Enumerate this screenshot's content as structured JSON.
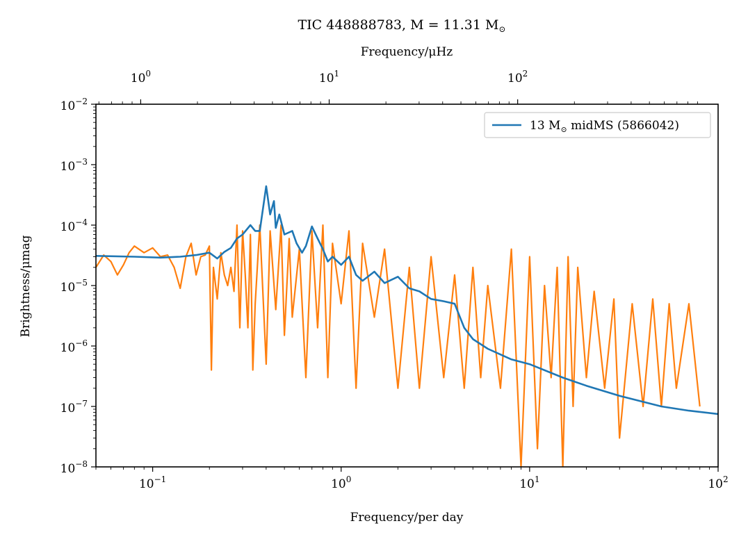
{
  "chart_data": {
    "type": "line",
    "title": "TIC 448888783, M = 11.31 M",
    "title_symbol": "⊙",
    "xlabel": "Frequency/per day",
    "ylabel": "Brightness/μmag",
    "top_xlabel": "Frequency/μHz",
    "x_scale": "log",
    "y_scale": "log",
    "xlim": [
      0.05,
      100
    ],
    "ylim": [
      1e-08,
      0.01
    ],
    "top_xlim": [
      0.5787,
      1157.4
    ],
    "bottom_x_ticks": [
      {
        "value": 0.1,
        "base": "10",
        "exp": "−1"
      },
      {
        "value": 1,
        "base": "10",
        "exp": "0"
      },
      {
        "value": 10,
        "base": "10",
        "exp": "1"
      },
      {
        "value": 100,
        "base": "10",
        "exp": "2"
      }
    ],
    "top_x_ticks": [
      {
        "value": 1,
        "base": "10",
        "exp": "0"
      },
      {
        "value": 10,
        "base": "10",
        "exp": "1"
      },
      {
        "value": 100,
        "base": "10",
        "exp": "2"
      }
    ],
    "y_ticks": [
      {
        "value": 1e-08,
        "base": "10",
        "exp": "−8"
      },
      {
        "value": 1e-07,
        "base": "10",
        "exp": "−7"
      },
      {
        "value": 1e-06,
        "base": "10",
        "exp": "−6"
      },
      {
        "value": 1e-05,
        "base": "10",
        "exp": "−5"
      },
      {
        "value": 0.0001,
        "base": "10",
        "exp": "−4"
      },
      {
        "value": 0.001,
        "base": "10",
        "exp": "−3"
      },
      {
        "value": 0.01,
        "base": "10",
        "exp": "−2"
      }
    ],
    "legend": {
      "placement": "top-right",
      "text": "13 M",
      "symbol": "⊙",
      "text_after": " midMS (5866042)"
    },
    "grid": false,
    "series": [
      {
        "name": "",
        "color": "#ff7f0e",
        "style": "dense noisy periodogram (envelope sketch)",
        "x": [
          0.05,
          0.055,
          0.06,
          0.065,
          0.07,
          0.075,
          0.08,
          0.09,
          0.1,
          0.11,
          0.12,
          0.13,
          0.14,
          0.15,
          0.16,
          0.17,
          0.18,
          0.19,
          0.2,
          0.205,
          0.21,
          0.22,
          0.23,
          0.24,
          0.25,
          0.26,
          0.27,
          0.28,
          0.29,
          0.3,
          0.31,
          0.32,
          0.33,
          0.34,
          0.35,
          0.37,
          0.4,
          0.42,
          0.45,
          0.48,
          0.5,
          0.53,
          0.55,
          0.6,
          0.65,
          0.7,
          0.75,
          0.8,
          0.85,
          0.9,
          1.0,
          1.1,
          1.2,
          1.3,
          1.5,
          1.7,
          2.0,
          2.3,
          2.6,
          3.0,
          3.5,
          4.0,
          4.5,
          5.0,
          5.5,
          6.0,
          7.0,
          8.0,
          9.0,
          10.0,
          11.0,
          12.0,
          13.0,
          14.0,
          15.0,
          16.0,
          17.0,
          18.0,
          20.0,
          22.0,
          25.0,
          28.0,
          30.0,
          35.0,
          40.0,
          45.0,
          50.0,
          55.0,
          60.0,
          70.0,
          80.0
        ],
        "y": [
          2e-05,
          3.2e-05,
          2.5e-05,
          1.5e-05,
          2.2e-05,
          3.5e-05,
          4.5e-05,
          3.5e-05,
          4.2e-05,
          3e-05,
          3.2e-05,
          2e-05,
          9e-06,
          3e-05,
          5e-05,
          1.5e-05,
          3e-05,
          3.2e-05,
          4.5e-05,
          4e-07,
          2e-05,
          6e-06,
          3.5e-05,
          1.5e-05,
          1e-05,
          2e-05,
          8e-06,
          0.0001,
          2e-06,
          8e-05,
          1.5e-05,
          2e-06,
          7e-05,
          4e-07,
          5e-06,
          0.0001,
          5e-07,
          8e-05,
          4e-06,
          0.0001,
          1.5e-06,
          6e-05,
          3e-06,
          4e-05,
          3e-07,
          8e-05,
          2e-06,
          0.0001,
          3e-07,
          5e-05,
          5e-06,
          8e-05,
          2e-07,
          5e-05,
          3e-06,
          4e-05,
          2e-07,
          2e-05,
          2e-07,
          3e-05,
          3e-07,
          1.5e-05,
          2e-07,
          2e-05,
          3e-07,
          1e-05,
          2e-07,
          4e-05,
          1e-08,
          3e-05,
          2e-08,
          1e-05,
          3e-07,
          2e-05,
          1e-08,
          3e-05,
          1e-07,
          2e-05,
          3e-07,
          8e-06,
          2e-07,
          6e-06,
          3e-08,
          5e-06,
          1e-07,
          6e-06,
          1e-07,
          5e-06,
          2e-07,
          5e-06,
          1e-07
        ]
      },
      {
        "name": "13 M⊙ midMS (5866042)",
        "color": "#1f77b4",
        "x": [
          0.05,
          0.08,
          0.11,
          0.14,
          0.17,
          0.2,
          0.22,
          0.24,
          0.26,
          0.28,
          0.3,
          0.33,
          0.35,
          0.37,
          0.4,
          0.42,
          0.44,
          0.45,
          0.47,
          0.5,
          0.55,
          0.58,
          0.62,
          0.65,
          0.7,
          0.75,
          0.8,
          0.85,
          0.9,
          1.0,
          1.1,
          1.2,
          1.3,
          1.5,
          1.7,
          2.0,
          2.3,
          2.6,
          3.0,
          3.5,
          4.0,
          4.5,
          5.0,
          6.0,
          8.0,
          10.0,
          15.0,
          20.0,
          30.0,
          50.0,
          70.0,
          100.0
        ],
        "y": [
          3.1e-05,
          3e-05,
          2.9e-05,
          3e-05,
          3.2e-05,
          3.5e-05,
          2.8e-05,
          3.6e-05,
          4.2e-05,
          6e-05,
          7e-05,
          0.0001,
          8e-05,
          8e-05,
          0.00044,
          0.00015,
          0.00025,
          9e-05,
          0.00015,
          7e-05,
          8e-05,
          5e-05,
          3.5e-05,
          4.5e-05,
          9.5e-05,
          6e-05,
          4e-05,
          2.5e-05,
          3e-05,
          2.2e-05,
          3e-05,
          1.5e-05,
          1.2e-05,
          1.7e-05,
          1.1e-05,
          1.4e-05,
          9e-06,
          8e-06,
          6e-06,
          5.5e-06,
          5e-06,
          2e-06,
          1.3e-06,
          9e-07,
          6e-07,
          5e-07,
          3e-07,
          2.2e-07,
          1.5e-07,
          1e-07,
          8.5e-08,
          7.5e-08
        ]
      }
    ]
  }
}
